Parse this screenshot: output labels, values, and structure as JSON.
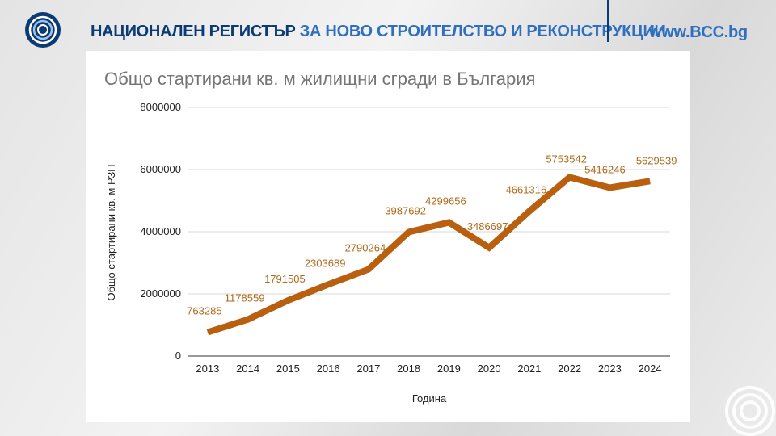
{
  "header": {
    "title_part1": "НАЦИОНАЛЕН РЕГИСТЪР",
    "title_part2": "ЗА НОВО СТРОИТЕЛСТВО И РЕКОНСТРУКЦИИ",
    "website": "www.BCC.bg"
  },
  "colors": {
    "navy": "#0b3b74",
    "accent_blue": "#2e6fbf",
    "series": "#b8600f",
    "label": "#b06a1b"
  },
  "chart_data": {
    "type": "line",
    "title": "Общо стартирани кв. м жилищни сгради в България",
    "xlabel": "Година",
    "ylabel": "Общо стартирани кв. м РЗП",
    "x": [
      "2013",
      "2014",
      "2015",
      "2016",
      "2017",
      "2018",
      "2019",
      "2020",
      "2021",
      "2022",
      "2023",
      "2024"
    ],
    "series": [
      {
        "values": [
          763285,
          1178559,
          1791505,
          2303689,
          2790264,
          3987692,
          4299656,
          3486697,
          4661316,
          5753542,
          5416246,
          5629539
        ]
      }
    ],
    "data_labels": [
      "763285",
      "1178559",
      "1791505",
      "2303689",
      "2790264",
      "3987692",
      "4299656",
      "3486697",
      "4661316",
      "5753542",
      "5416246",
      "5629539"
    ],
    "yticks": [
      "0",
      "2000000",
      "4000000",
      "6000000",
      "8000000"
    ],
    "ylim": [
      0,
      8000000
    ],
    "grid": true,
    "legend": "none"
  }
}
